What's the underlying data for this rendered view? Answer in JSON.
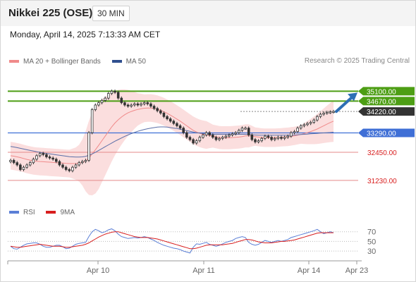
{
  "header": {
    "title": "Nikkei 225 (OSE)",
    "interval": "30 MIN"
  },
  "timestamp": "Monday, April 14, 2025 7:13:33 AM CET",
  "research": "Research © 2025 Trading Central",
  "colors": {
    "resistance": "#4d9e14",
    "support": "#e58a8a",
    "pivot": "#3f6fd6",
    "price_tag": "#333333",
    "bollinger_fill": "#fbdede",
    "ma20": "#f08a8a",
    "ma50": "#5b6fa8",
    "rsi": "#5b7fd6",
    "rsi_ma": "#d81e1e",
    "arrow": "#2e6fb5"
  },
  "chart_data": [
    {
      "type": "candlestick",
      "legend": [
        "MA 20 + Bollinger Bands",
        "MA 50"
      ],
      "x_ticks": [
        "Apr 10",
        "Apr 11",
        "Apr 14",
        "Apr 23"
      ],
      "ylim": [
        30400,
        35600
      ],
      "levels": [
        {
          "value": 35100,
          "label": "35100.00",
          "kind": "resistance"
        },
        {
          "value": 34670,
          "label": "34670.00",
          "kind": "resistance"
        },
        {
          "value": 34220,
          "label": "34220.00",
          "kind": "price"
        },
        {
          "value": 33290,
          "label": "33290.00",
          "kind": "pivot"
        },
        {
          "value": 32450,
          "label": "32450.00",
          "kind": "support"
        },
        {
          "value": 31230,
          "label": "31230.00",
          "kind": "support"
        }
      ],
      "close": [
        32100,
        32000,
        31900,
        31700,
        31800,
        31900,
        32000,
        32150,
        32300,
        32400,
        32350,
        32250,
        32200,
        32150,
        32050,
        31900,
        31800,
        31700,
        31650,
        31800,
        31900,
        32000,
        32050,
        32100,
        33300,
        34300,
        34500,
        34600,
        34700,
        34800,
        35000,
        35100,
        35050,
        34800,
        34600,
        34500,
        34450,
        34500,
        34550,
        34500,
        34550,
        34600,
        34550,
        34450,
        34350,
        34250,
        34150,
        34000,
        33900,
        33800,
        33700,
        33600,
        33500,
        33300,
        33100,
        33000,
        32850,
        32950,
        33100,
        33200,
        33300,
        33200,
        33100,
        33000,
        33050,
        33100,
        33150,
        33200,
        33250,
        33300,
        33400,
        33500,
        33500,
        33200,
        33000,
        32900,
        32950,
        33050,
        33150,
        33100,
        33000,
        33050,
        33100,
        33050,
        33100,
        33150,
        33300,
        33350,
        33500,
        33600,
        33650,
        33700,
        33750,
        33850,
        34000,
        34100,
        34150,
        34180,
        34200,
        34220
      ],
      "ma20": [
        32300,
        32280,
        32250,
        32220,
        32180,
        32140,
        32110,
        32080,
        32060,
        32050,
        32040,
        32030,
        32020,
        32010,
        32000,
        31990,
        31980,
        31970,
        31960,
        31960,
        31960,
        31980,
        32010,
        32060,
        32200,
        32380,
        32560,
        32750,
        32950,
        33150,
        33350,
        33550,
        33720,
        33860,
        33980,
        34080,
        34160,
        34220,
        34270,
        34310,
        34340,
        34360,
        34370,
        34370,
        34350,
        34320,
        34270,
        34210,
        34140,
        34060,
        33980,
        33890,
        33800,
        33700,
        33600,
        33500,
        33400,
        33330,
        33270,
        33230,
        33200,
        33180,
        33150,
        33120,
        33090,
        33080,
        33080,
        33080,
        33090,
        33100,
        33110,
        33130,
        33160,
        33160,
        33150,
        33130,
        33110,
        33090,
        33080,
        33080,
        33080,
        33080,
        33090,
        33100,
        33110,
        33120,
        33140,
        33160,
        33190,
        33220,
        33260,
        33300,
        33350,
        33400,
        33460,
        33530,
        33600,
        33670,
        33740,
        33800
      ],
      "ma50": [
        32700,
        32680,
        32650,
        32620,
        32590,
        32560,
        32530,
        32500,
        32470,
        32450,
        32420,
        32400,
        32380,
        32360,
        32340,
        32320,
        32300,
        32280,
        32260,
        32250,
        32240,
        32240,
        32250,
        32270,
        32320,
        32380,
        32450,
        32530,
        32610,
        32690,
        32770,
        32850,
        32930,
        33000,
        33070,
        33140,
        33200,
        33260,
        33310,
        33360,
        33400,
        33440,
        33470,
        33500,
        33520,
        33540,
        33550,
        33550,
        33540,
        33520,
        33500,
        33480,
        33450,
        33420,
        33390,
        33360,
        33330,
        33300,
        33280,
        33260,
        33250,
        33240,
        33230,
        33230,
        33230,
        33230,
        33230,
        33230,
        33230,
        33230,
        33230,
        33230,
        33230,
        33220,
        33210,
        33200,
        33190,
        33190,
        33190,
        33190,
        33190,
        33190,
        33190,
        33190,
        33190,
        33190,
        33190,
        33200,
        33210,
        33220,
        33230,
        33240,
        33250,
        33260,
        33270,
        33280,
        33290,
        33300,
        33310,
        33320
      ],
      "band_width": [
        600,
        600,
        600,
        600,
        600,
        600,
        600,
        600,
        600,
        600,
        600,
        600,
        600,
        600,
        600,
        600,
        600,
        600,
        600,
        650,
        700,
        800,
        1000,
        1300,
        1600,
        1800,
        1900,
        1900,
        1800,
        1700,
        1600,
        1500,
        1400,
        1300,
        1200,
        1100,
        1000,
        900,
        800,
        700,
        650,
        600,
        600,
        600,
        600,
        600,
        600,
        600,
        600,
        600,
        600,
        600,
        600,
        600,
        600,
        600,
        600,
        600,
        600,
        600,
        600,
        550,
        500,
        500,
        500,
        500,
        500,
        500,
        500,
        500,
        500,
        500,
        500,
        500,
        450,
        400,
        400,
        400,
        400,
        400,
        400,
        400,
        400,
        400,
        400,
        400,
        400,
        400,
        400,
        400,
        450,
        500,
        550,
        600,
        650,
        700,
        750,
        800,
        850,
        900
      ]
    },
    {
      "type": "line",
      "legend": [
        "RSI",
        "9MA"
      ],
      "y_ticks": [
        70,
        50,
        30
      ],
      "ylim": [
        20,
        90
      ],
      "series": [
        {
          "name": "RSI",
          "values": [
            40,
            35,
            34,
            38,
            42,
            45,
            46,
            47,
            47,
            44,
            40,
            38,
            38,
            40,
            42,
            42,
            39,
            35,
            36,
            40,
            44,
            46,
            47,
            48,
            60,
            70,
            75,
            72,
            68,
            70,
            74,
            76,
            72,
            65,
            60,
            58,
            56,
            57,
            58,
            57,
            58,
            60,
            58,
            55,
            52,
            48,
            45,
            42,
            40,
            38,
            36,
            35,
            33,
            30,
            28,
            26,
            38,
            45,
            44,
            46,
            48,
            44,
            42,
            40,
            42,
            45,
            48,
            50,
            52,
            56,
            58,
            60,
            58,
            48,
            44,
            42,
            44,
            48,
            52,
            50,
            48,
            50,
            52,
            50,
            52,
            54,
            58,
            60,
            62,
            64,
            66,
            68,
            70,
            72,
            75,
            70,
            66,
            68,
            70,
            68
          ]
        },
        {
          "name": "9MA",
          "values": [
            40,
            39,
            38,
            38,
            39,
            40,
            41,
            42,
            43,
            44,
            43,
            42,
            41,
            40,
            40,
            40,
            39,
            38,
            38,
            39,
            40,
            41,
            42,
            44,
            47,
            51,
            55,
            59,
            62,
            65,
            67,
            69,
            70,
            70,
            68,
            66,
            64,
            62,
            60,
            59,
            58,
            58,
            58,
            57,
            56,
            55,
            53,
            51,
            49,
            47,
            45,
            43,
            41,
            39,
            37,
            35,
            35,
            36,
            38,
            40,
            42,
            43,
            43,
            43,
            43,
            43,
            44,
            45,
            46,
            48,
            50,
            52,
            54,
            54,
            53,
            51,
            49,
            48,
            47,
            47,
            47,
            48,
            49,
            50,
            50,
            51,
            52,
            53,
            55,
            57,
            59,
            61,
            63,
            65,
            67,
            68,
            68,
            68,
            68,
            68
          ]
        }
      ]
    }
  ]
}
